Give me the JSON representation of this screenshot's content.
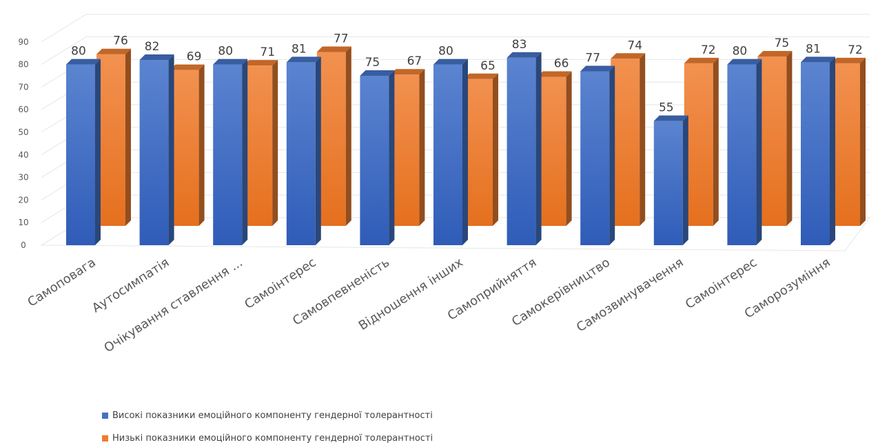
{
  "chart_data": {
    "type": "bar",
    "style": "3d-clustered-column",
    "categories": [
      "Самоповага",
      "Аутосимпатія",
      "Очікування ставлення ...",
      "Самоінтерес",
      "Самовпевненість",
      "Відношення інших",
      "Самоприйняття",
      "Самокерівництво",
      "Самозвинувачення",
      "Самоінтерес",
      "Саморозуміння"
    ],
    "series": [
      {
        "name": "Високі показники емоційного компоненту гендерної толерантності",
        "color": "#4472C4",
        "values": [
          80,
          82,
          80,
          81,
          75,
          80,
          83,
          77,
          55,
          80,
          81
        ]
      },
      {
        "name": "Низькі показники емоційного компоненту гендерної толерантності",
        "color": "#ED7D31",
        "values": [
          76,
          69,
          71,
          77,
          67,
          65,
          66,
          74,
          72,
          75,
          72
        ]
      }
    ],
    "y_ticks": [
      "0",
      "10",
      "20",
      "30",
      "40",
      "50",
      "60",
      "70",
      "80",
      "90"
    ],
    "ylim": [
      0,
      90
    ],
    "grid": true,
    "legend_position": "bottom",
    "data_labels": true
  }
}
